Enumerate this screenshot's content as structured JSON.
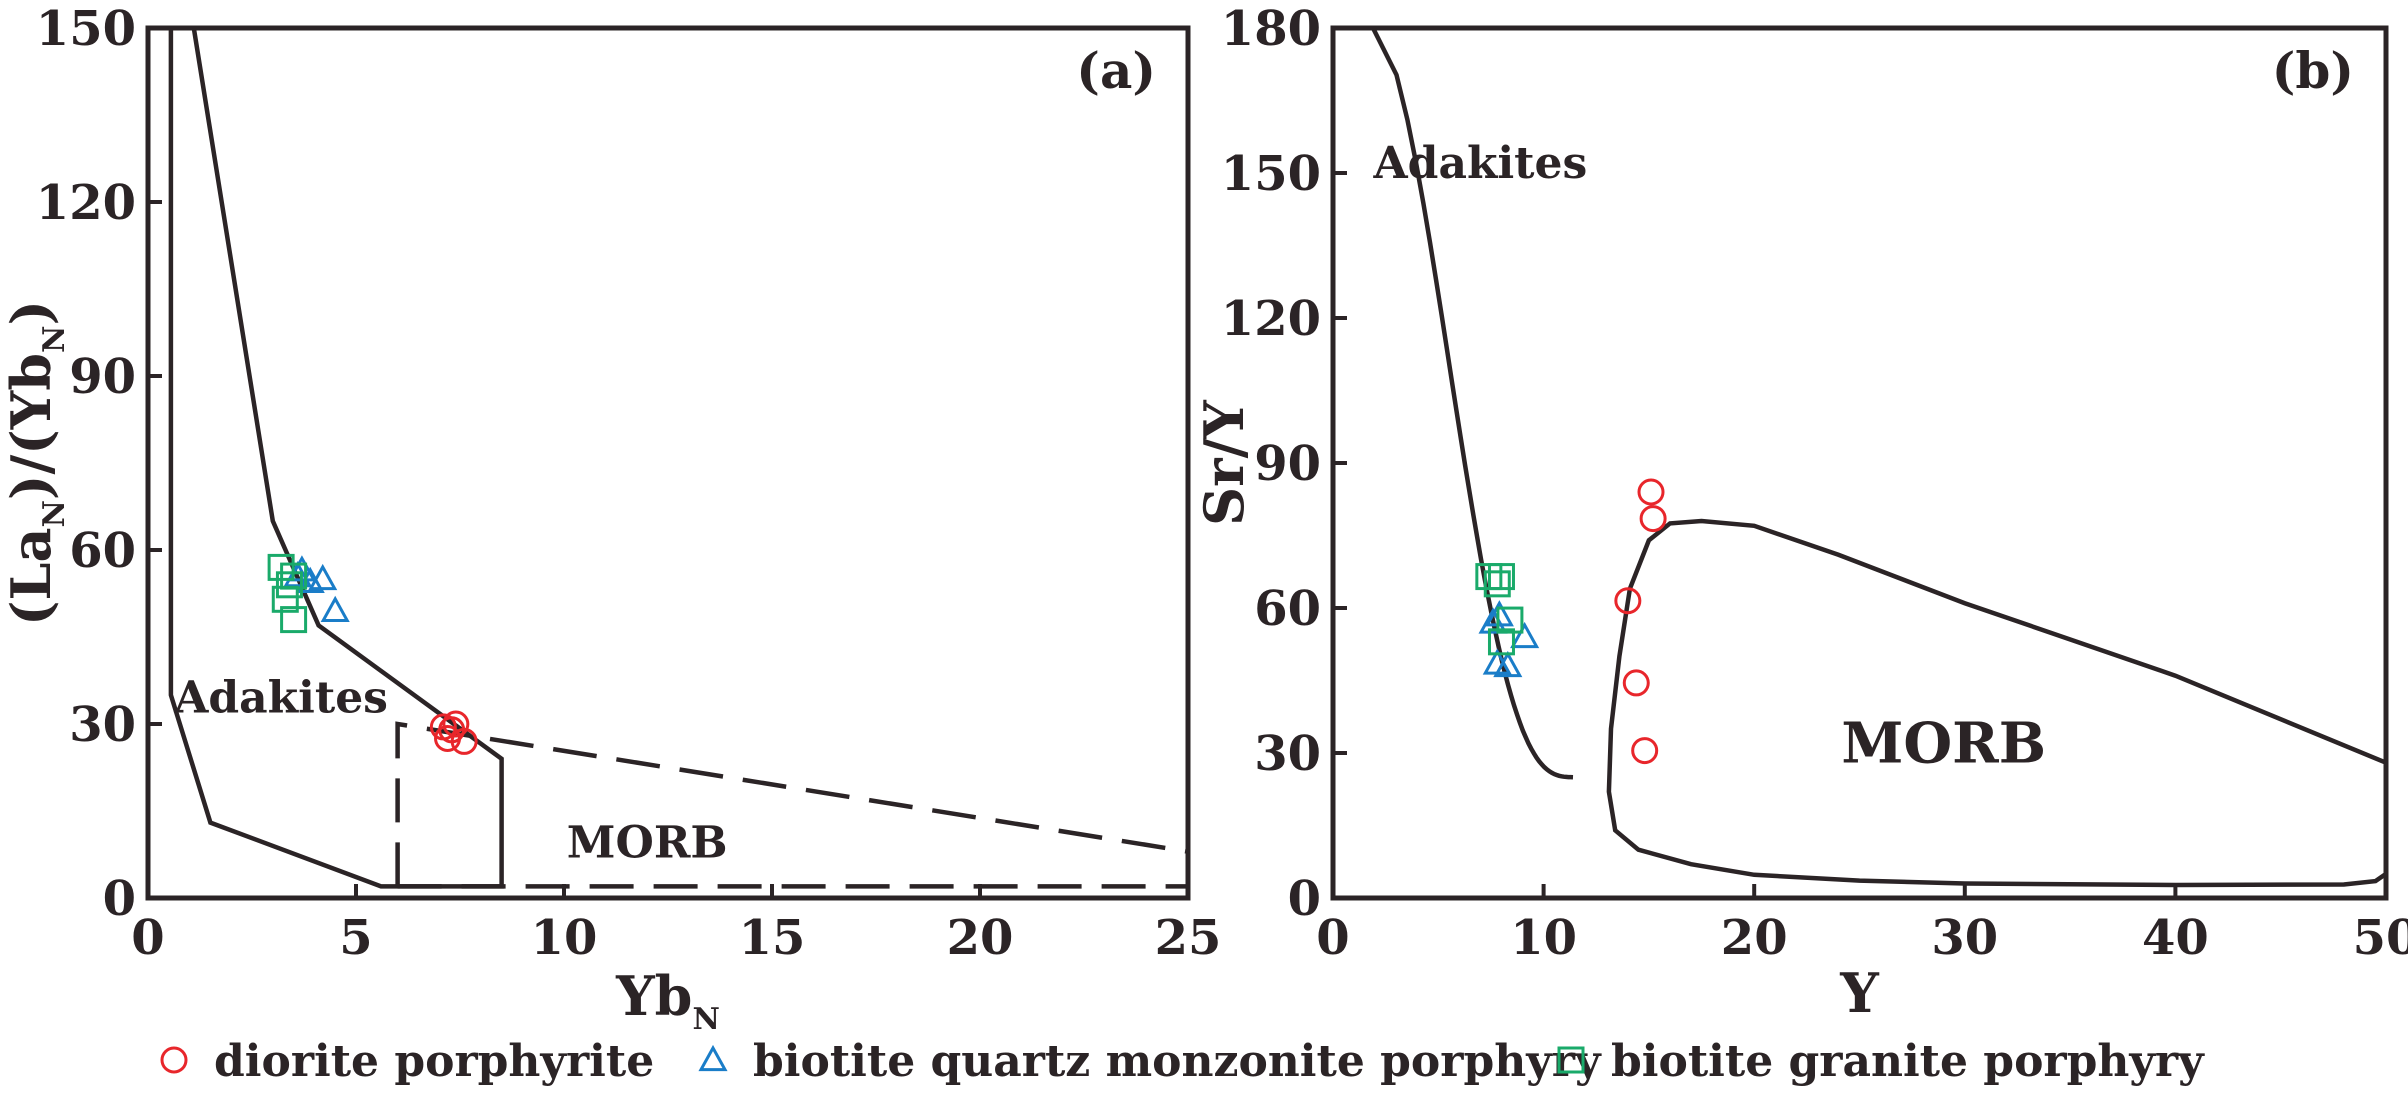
{
  "colors": {
    "ink": "#2b2426",
    "diorite": "#e8262b",
    "monzonite": "#1a7dc8",
    "granite": "#1aaa6a"
  },
  "legend": [
    {
      "key": "diorite",
      "marker": "circle",
      "label": "diorite porphyrite"
    },
    {
      "key": "monzonite",
      "marker": "triangle",
      "label": "biotite quartz monzonite porphyry"
    },
    {
      "key": "granite",
      "marker": "square",
      "label": "biotite granite porphyry"
    }
  ],
  "chart_data": [
    {
      "type": "scatter",
      "panel_label": "(a)",
      "xlabel": "YbN",
      "ylabel": "(LaN)/(YbN)",
      "xlim": [
        0,
        25
      ],
      "ylim": [
        0,
        150
      ],
      "xticks": [
        0,
        5,
        10,
        15,
        20,
        25
      ],
      "yticks": [
        0,
        30,
        60,
        90,
        120,
        150
      ],
      "field_labels": [
        {
          "text": "Adakites",
          "x": 3.2,
          "y": 32
        },
        {
          "text": "MORB",
          "x": 12,
          "y": 7
        }
      ],
      "series": [
        {
          "key": "diorite",
          "name": "diorite porphyrite",
          "marker": "circle",
          "points": [
            [
              7.1,
              29.5
            ],
            [
              7.3,
              29.0
            ],
            [
              7.2,
              27.5
            ],
            [
              7.4,
              30.0
            ],
            [
              7.6,
              27.0
            ]
          ]
        },
        {
          "key": "monzonite",
          "name": "biotite quartz monzonite porphyry",
          "marker": "triangle",
          "points": [
            [
              3.7,
              56.5
            ],
            [
              3.9,
              54.5
            ],
            [
              4.2,
              55.0
            ],
            [
              4.5,
              49.5
            ],
            [
              3.6,
              55.5
            ]
          ]
        },
        {
          "key": "granite",
          "name": "biotite granite porphyry",
          "marker": "square",
          "points": [
            [
              3.2,
              57.0
            ],
            [
              3.5,
              55.5
            ],
            [
              3.4,
              54.0
            ],
            [
              3.3,
              51.5
            ],
            [
              3.5,
              48.0
            ]
          ]
        }
      ]
    },
    {
      "type": "scatter",
      "panel_label": "(b)",
      "xlabel": "Y",
      "ylabel": "Sr/Y",
      "xlim": [
        0,
        50
      ],
      "ylim": [
        0,
        180
      ],
      "xticks": [
        0,
        10,
        20,
        30,
        40,
        50
      ],
      "yticks": [
        0,
        30,
        60,
        90,
        120,
        150,
        180
      ],
      "field_labels": [
        {
          "text": "Adakites",
          "x": 7,
          "y": 149
        },
        {
          "text": "MORB",
          "x": 29,
          "y": 28
        }
      ],
      "series": [
        {
          "key": "diorite",
          "name": "diorite porphyrite",
          "marker": "circle",
          "points": [
            [
              15.1,
              84.0
            ],
            [
              15.2,
              78.5
            ],
            [
              14.0,
              61.5
            ],
            [
              14.4,
              44.5
            ],
            [
              14.8,
              30.5
            ]
          ]
        },
        {
          "key": "monzonite",
          "name": "biotite quartz monzonite porphyry",
          "marker": "triangle",
          "points": [
            [
              7.9,
              58.5
            ],
            [
              7.6,
              57.0
            ],
            [
              9.1,
              54.0
            ],
            [
              7.8,
              48.5
            ],
            [
              8.3,
              48.0
            ]
          ]
        },
        {
          "key": "granite",
          "name": "biotite granite porphyry",
          "marker": "square",
          "points": [
            [
              7.4,
              66.5
            ],
            [
              8.0,
              66.5
            ],
            [
              7.8,
              65.0
            ],
            [
              8.4,
              57.5
            ],
            [
              8.0,
              53.0
            ]
          ]
        }
      ]
    }
  ]
}
